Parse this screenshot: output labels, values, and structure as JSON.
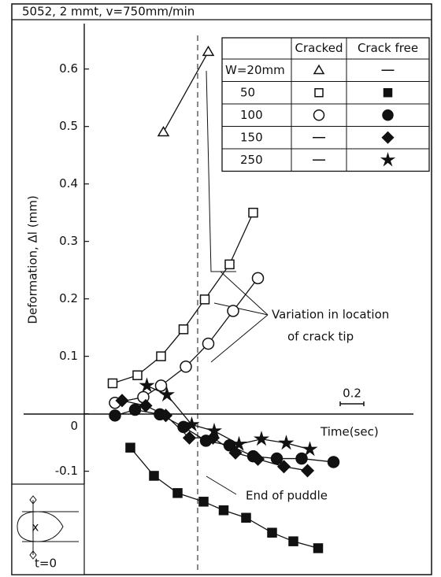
{
  "chart_data": {
    "type": "scatter",
    "title": "5052, 2 mmt, v=750mm/min",
    "ylabel": "Deformation, Δl (mm)",
    "xlabel": "Time(sec)",
    "scale_bar": {
      "value": 0.2,
      "label": "0.2"
    },
    "xlim": [
      -0.6,
      2.9
    ],
    "ylim": [
      -0.28,
      0.69
    ],
    "yticks": [
      0.6,
      0.5,
      0.4,
      0.3,
      0.2,
      0.1,
      0,
      -0.1
    ],
    "legend": {
      "columns": [
        "Cracked",
        "Crack free"
      ],
      "rows": [
        "W=20mm",
        "50",
        "100",
        "150",
        "250"
      ]
    },
    "annotations": {
      "crack_tip": [
        "Variation in location",
        "of crack tip"
      ],
      "end_of_puddle": {
        "text": "End of puddle",
        "x": 0.96
      },
      "inset": "t=0"
    },
    "series": [
      {
        "name": "W=20mm",
        "group": "Cracked",
        "marker": "triangle",
        "filled": false,
        "color": "#111",
        "x": [
          0.67,
          1.05
        ],
        "values": [
          0.49,
          0.63
        ]
      },
      {
        "name": "50",
        "group": "Cracked",
        "marker": "square",
        "filled": false,
        "color": "#111",
        "x": [
          0.24,
          0.45,
          0.65,
          0.84,
          1.02,
          1.23,
          1.43
        ],
        "values": [
          0.053,
          0.067,
          0.1,
          0.147,
          0.199,
          0.26,
          0.35
        ]
      },
      {
        "name": "100",
        "group": "Cracked",
        "marker": "circle",
        "filled": false,
        "color": "#111",
        "x": [
          0.26,
          0.5,
          0.65,
          0.86,
          1.05,
          1.26,
          1.47
        ],
        "values": [
          0.019,
          0.029,
          0.049,
          0.082,
          0.122,
          0.179,
          0.236
        ]
      },
      {
        "name": "50",
        "group": "Crack free",
        "marker": "square",
        "filled": true,
        "color": "#111",
        "x": [
          0.39,
          0.59,
          0.79,
          1.01,
          1.18,
          1.37,
          1.59,
          1.77,
          1.98
        ],
        "values": [
          -0.059,
          -0.108,
          -0.138,
          -0.153,
          -0.168,
          -0.181,
          -0.207,
          -0.222,
          -0.234
        ]
      },
      {
        "name": "100",
        "group": "Crack free",
        "marker": "circle",
        "filled": true,
        "color": "#111",
        "x": [
          0.26,
          0.43,
          0.64,
          0.84,
          1.03,
          1.23,
          1.43,
          1.63,
          1.84,
          2.11
        ],
        "values": [
          -0.003,
          0.007,
          -0.001,
          -0.023,
          -0.047,
          -0.055,
          -0.074,
          -0.078,
          -0.078,
          -0.084
        ]
      },
      {
        "name": "150",
        "group": "Crack free",
        "marker": "diamond",
        "filled": true,
        "color": "#111",
        "x": [
          0.32,
          0.52,
          0.69,
          0.89,
          1.09,
          1.28,
          1.47,
          1.69,
          1.89
        ],
        "values": [
          0.023,
          0.014,
          -0.003,
          -0.042,
          -0.042,
          -0.068,
          -0.079,
          -0.092,
          -0.099
        ]
      },
      {
        "name": "250",
        "group": "Crack free",
        "marker": "star",
        "filled": true,
        "color": "#111",
        "x": [
          0.53,
          0.7,
          0.91,
          1.1,
          1.31,
          1.5,
          1.71,
          1.91
        ],
        "values": [
          0.049,
          0.033,
          -0.019,
          -0.03,
          -0.053,
          -0.044,
          -0.051,
          -0.062
        ]
      }
    ]
  }
}
